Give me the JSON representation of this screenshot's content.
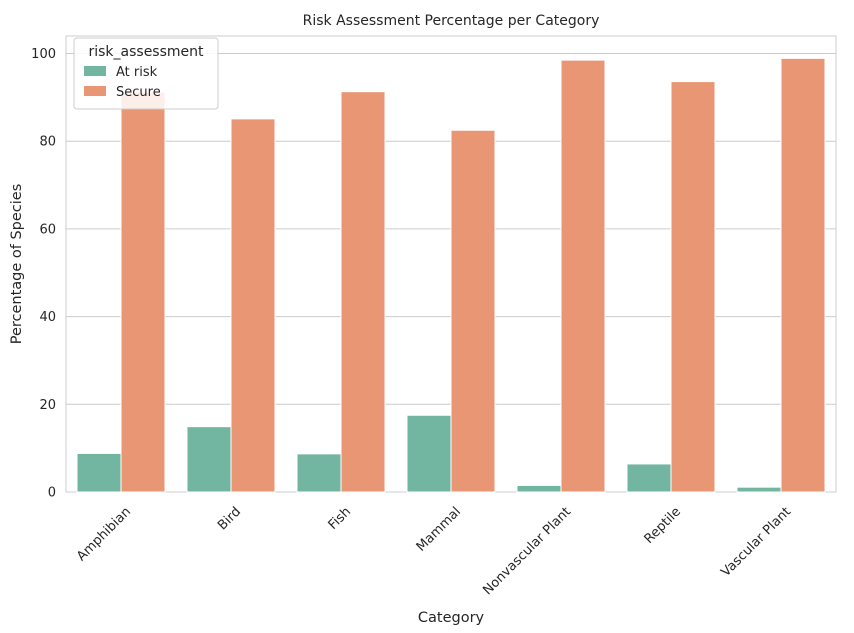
{
  "chart_data": {
    "type": "bar",
    "title": "Risk Assessment Percentage per Category",
    "xlabel": "Category",
    "ylabel": "Percentage of Species",
    "categories": [
      "Amphibian",
      "Bird",
      "Fish",
      "Mammal",
      "Nonvascular Plant",
      "Reptile",
      "Vascular Plant"
    ],
    "series": [
      {
        "name": "At risk",
        "color": "#72b6a1",
        "values": [
          8.8,
          14.9,
          8.7,
          17.5,
          1.5,
          6.4,
          1.1
        ]
      },
      {
        "name": "Secure",
        "color": "#e99675",
        "values": [
          91.2,
          85.1,
          91.3,
          82.5,
          98.5,
          93.6,
          98.9
        ]
      }
    ],
    "ylim": [
      0,
      104
    ],
    "yticks": [
      0,
      20,
      40,
      60,
      80,
      100
    ],
    "grid": true,
    "legend": {
      "title": "risk_assessment",
      "position": "top-left"
    }
  }
}
